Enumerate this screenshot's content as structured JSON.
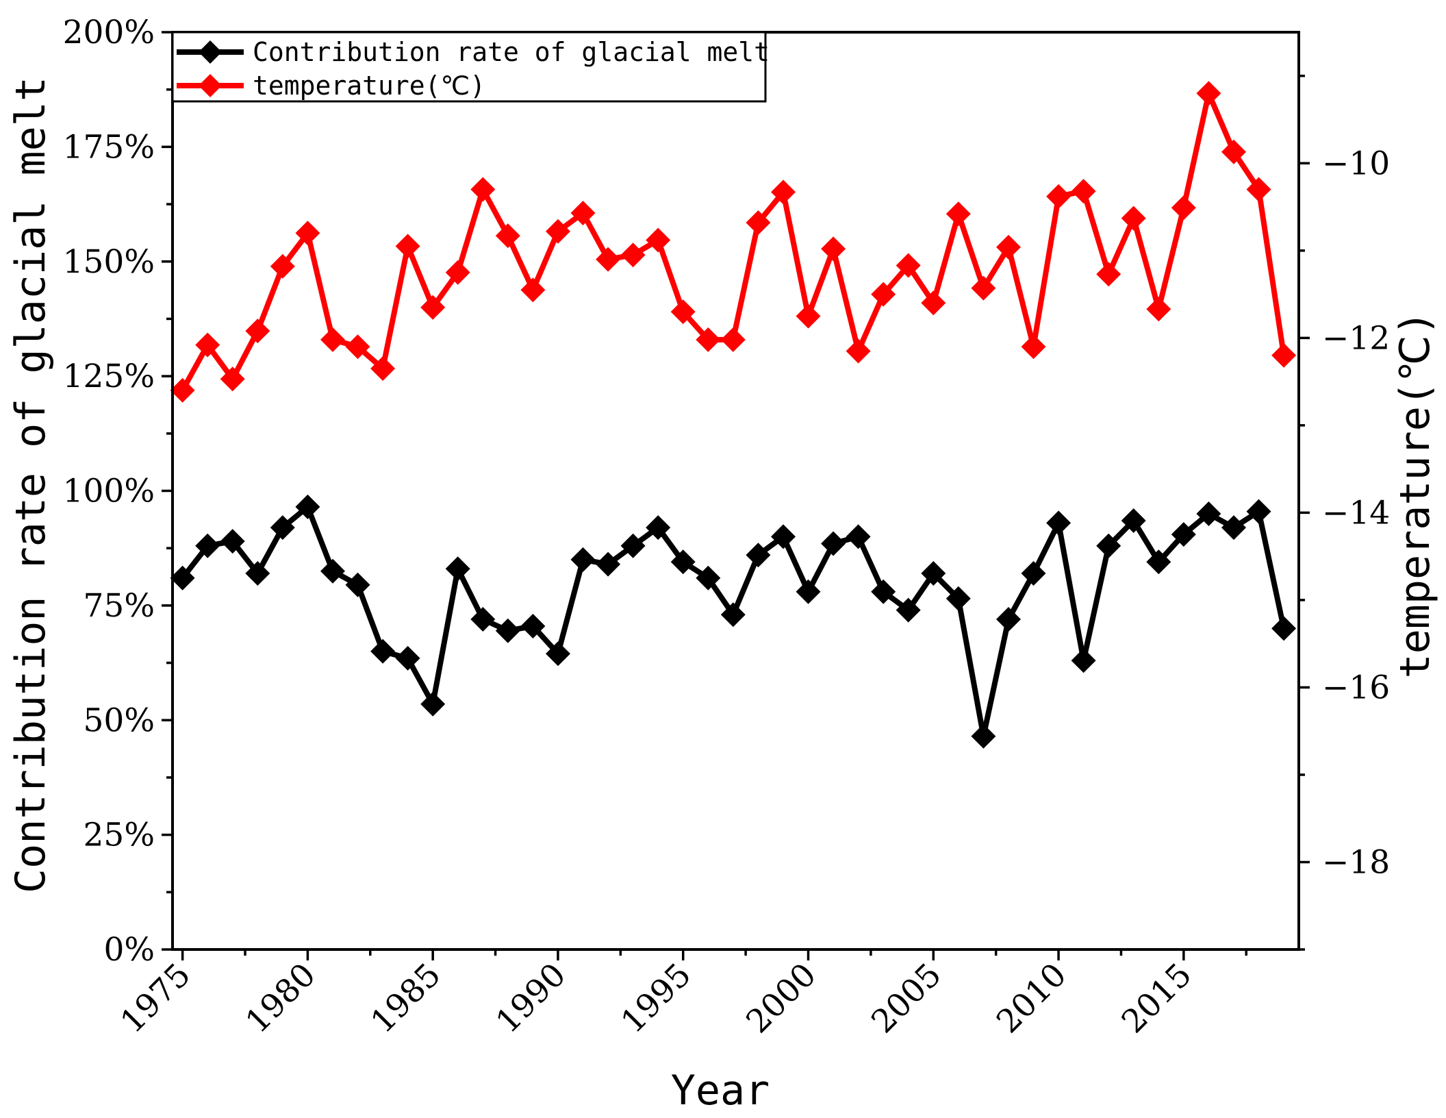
{
  "chart_data": {
    "type": "line",
    "xlabel": "Year",
    "ylabel": "Contribution rate of glacial melt",
    "y2label": "temperature(℃)",
    "xlim": [
      1974.6,
      2019.6
    ],
    "ylim": [
      0,
      200
    ],
    "y2lim": [
      -19,
      -8.5
    ],
    "x_ticks": [
      1975,
      1980,
      1985,
      1990,
      1995,
      2000,
      2005,
      2010,
      2015
    ],
    "y_ticks": [
      0,
      25,
      50,
      75,
      100,
      125,
      150,
      175,
      200
    ],
    "y_tick_labels": [
      "0%",
      "25%",
      "50%",
      "75%",
      "100%",
      "125%",
      "150%",
      "175%",
      "200%"
    ],
    "y2_ticks": [
      -18,
      -16,
      -14,
      -12,
      -10
    ],
    "y2_tick_labels": [
      "−18",
      "−16",
      "−14",
      "−12",
      "−10"
    ],
    "legend_position": "top-left",
    "x": [
      1975,
      1976,
      1977,
      1978,
      1979,
      1980,
      1981,
      1982,
      1983,
      1984,
      1985,
      1986,
      1987,
      1988,
      1989,
      1990,
      1991,
      1992,
      1993,
      1994,
      1995,
      1996,
      1997,
      1998,
      1999,
      2000,
      2001,
      2002,
      2003,
      2004,
      2005,
      2006,
      2007,
      2008,
      2009,
      2010,
      2011,
      2012,
      2013,
      2014,
      2015,
      2016,
      2017,
      2018,
      2019
    ],
    "series": [
      {
        "name": "Contribution rate of glacial melt",
        "axis": "left",
        "color": "#000000",
        "values": [
          81,
          88,
          89,
          82,
          92,
          96.5,
          82.5,
          79.5,
          65,
          63.5,
          53.5,
          83,
          72,
          69.5,
          70.5,
          64.5,
          85,
          84,
          88,
          92,
          84.5,
          81,
          73,
          86,
          90,
          78,
          88.5,
          90,
          78,
          74,
          82,
          76.5,
          46.5,
          72,
          82,
          93,
          63,
          88,
          93.5,
          84.5,
          90.5,
          95,
          92,
          95.5,
          70
        ]
      },
      {
        "name": "temperature(℃)",
        "axis": "right",
        "color": "#ff0000",
        "values": [
          -12.6,
          -12.08,
          -12.47,
          -11.92,
          -11.18,
          -10.8,
          -12.02,
          -12.1,
          -12.35,
          -10.95,
          -11.65,
          -11.25,
          -10.3,
          -10.83,
          -11.45,
          -10.78,
          -10.57,
          -11.1,
          -11.05,
          -10.88,
          -11.7,
          -12.02,
          -12.02,
          -10.68,
          -10.33,
          -11.75,
          -10.98,
          -12.15,
          -11.5,
          -11.17,
          -11.6,
          -10.58,
          -11.43,
          -10.96,
          -12.1,
          -10.38,
          -10.32,
          -11.27,
          -10.63,
          -11.67,
          -10.51,
          -9.2,
          -9.87,
          -10.3,
          -12.2
        ]
      }
    ]
  }
}
